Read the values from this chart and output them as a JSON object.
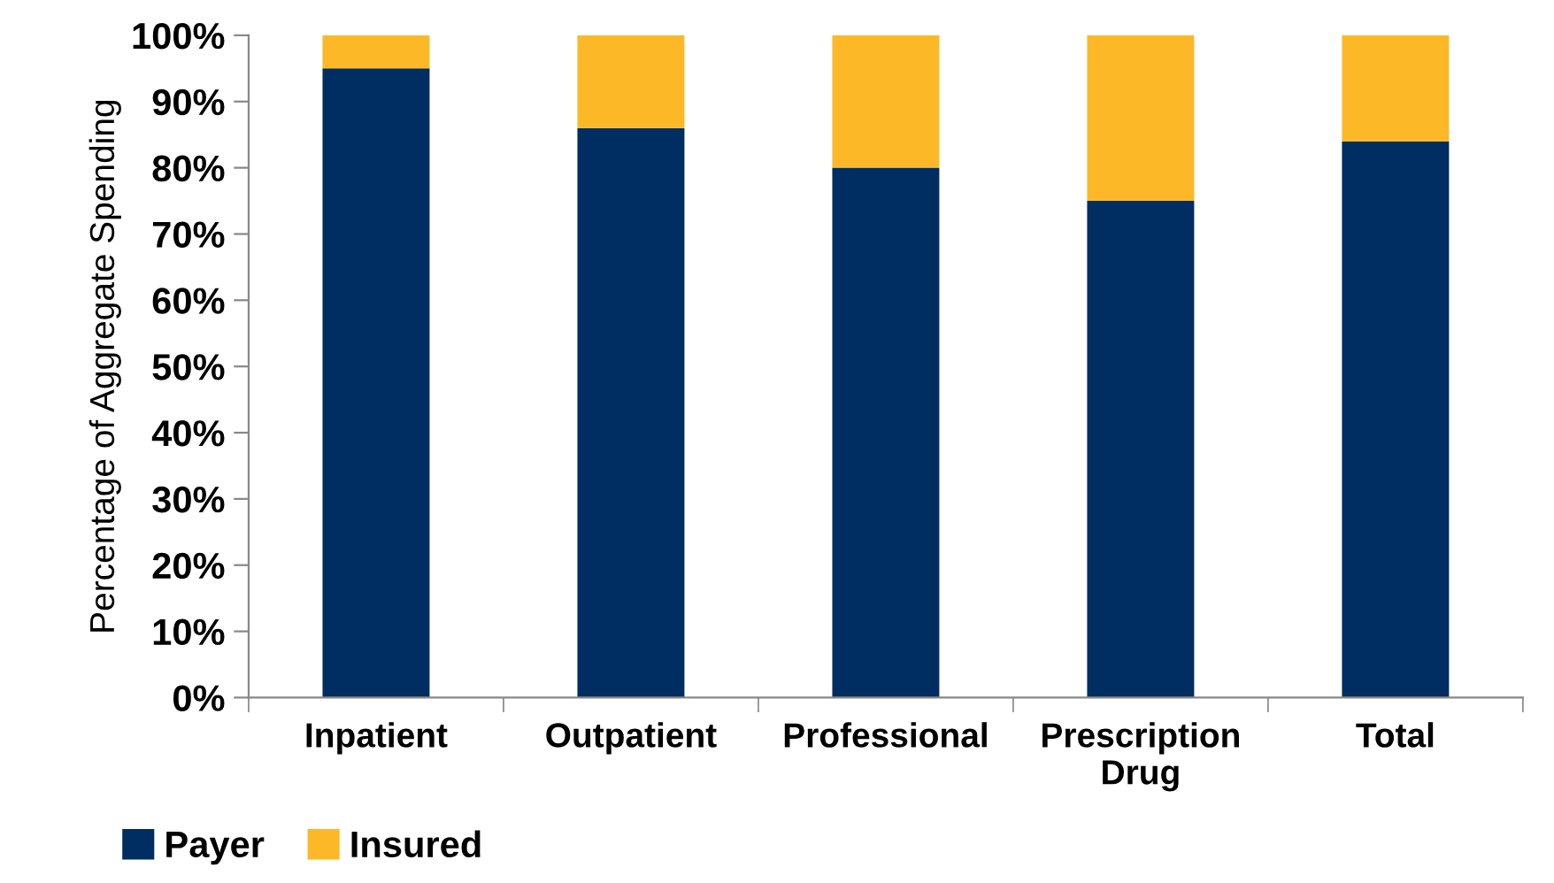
{
  "chart_data": {
    "type": "bar",
    "stacked": true,
    "ylabel": "Percentage of Aggregate Spending",
    "categories": [
      "Inpatient",
      "Outpatient",
      "Professional",
      "Prescription\nDrug",
      "Total"
    ],
    "series": [
      {
        "name": "Payer",
        "color": "#002d62",
        "values": [
          95,
          86,
          80,
          75,
          84
        ]
      },
      {
        "name": "Insured",
        "color": "#fdb827",
        "values": [
          5,
          14,
          20,
          25,
          16
        ]
      }
    ],
    "ylim": [
      0,
      100
    ],
    "yticks": [
      {
        "value": 0,
        "label": "0%"
      },
      {
        "value": 10,
        "label": "10%"
      },
      {
        "value": 20,
        "label": "20%"
      },
      {
        "value": 30,
        "label": "30%"
      },
      {
        "value": 40,
        "label": "40%"
      },
      {
        "value": 50,
        "label": "50%"
      },
      {
        "value": 60,
        "label": "60%"
      },
      {
        "value": 70,
        "label": "70%"
      },
      {
        "value": 80,
        "label": "80%"
      },
      {
        "value": 90,
        "label": "90%"
      },
      {
        "value": 100,
        "label": "100%"
      }
    ],
    "grid": false,
    "legend": "bottom left"
  }
}
